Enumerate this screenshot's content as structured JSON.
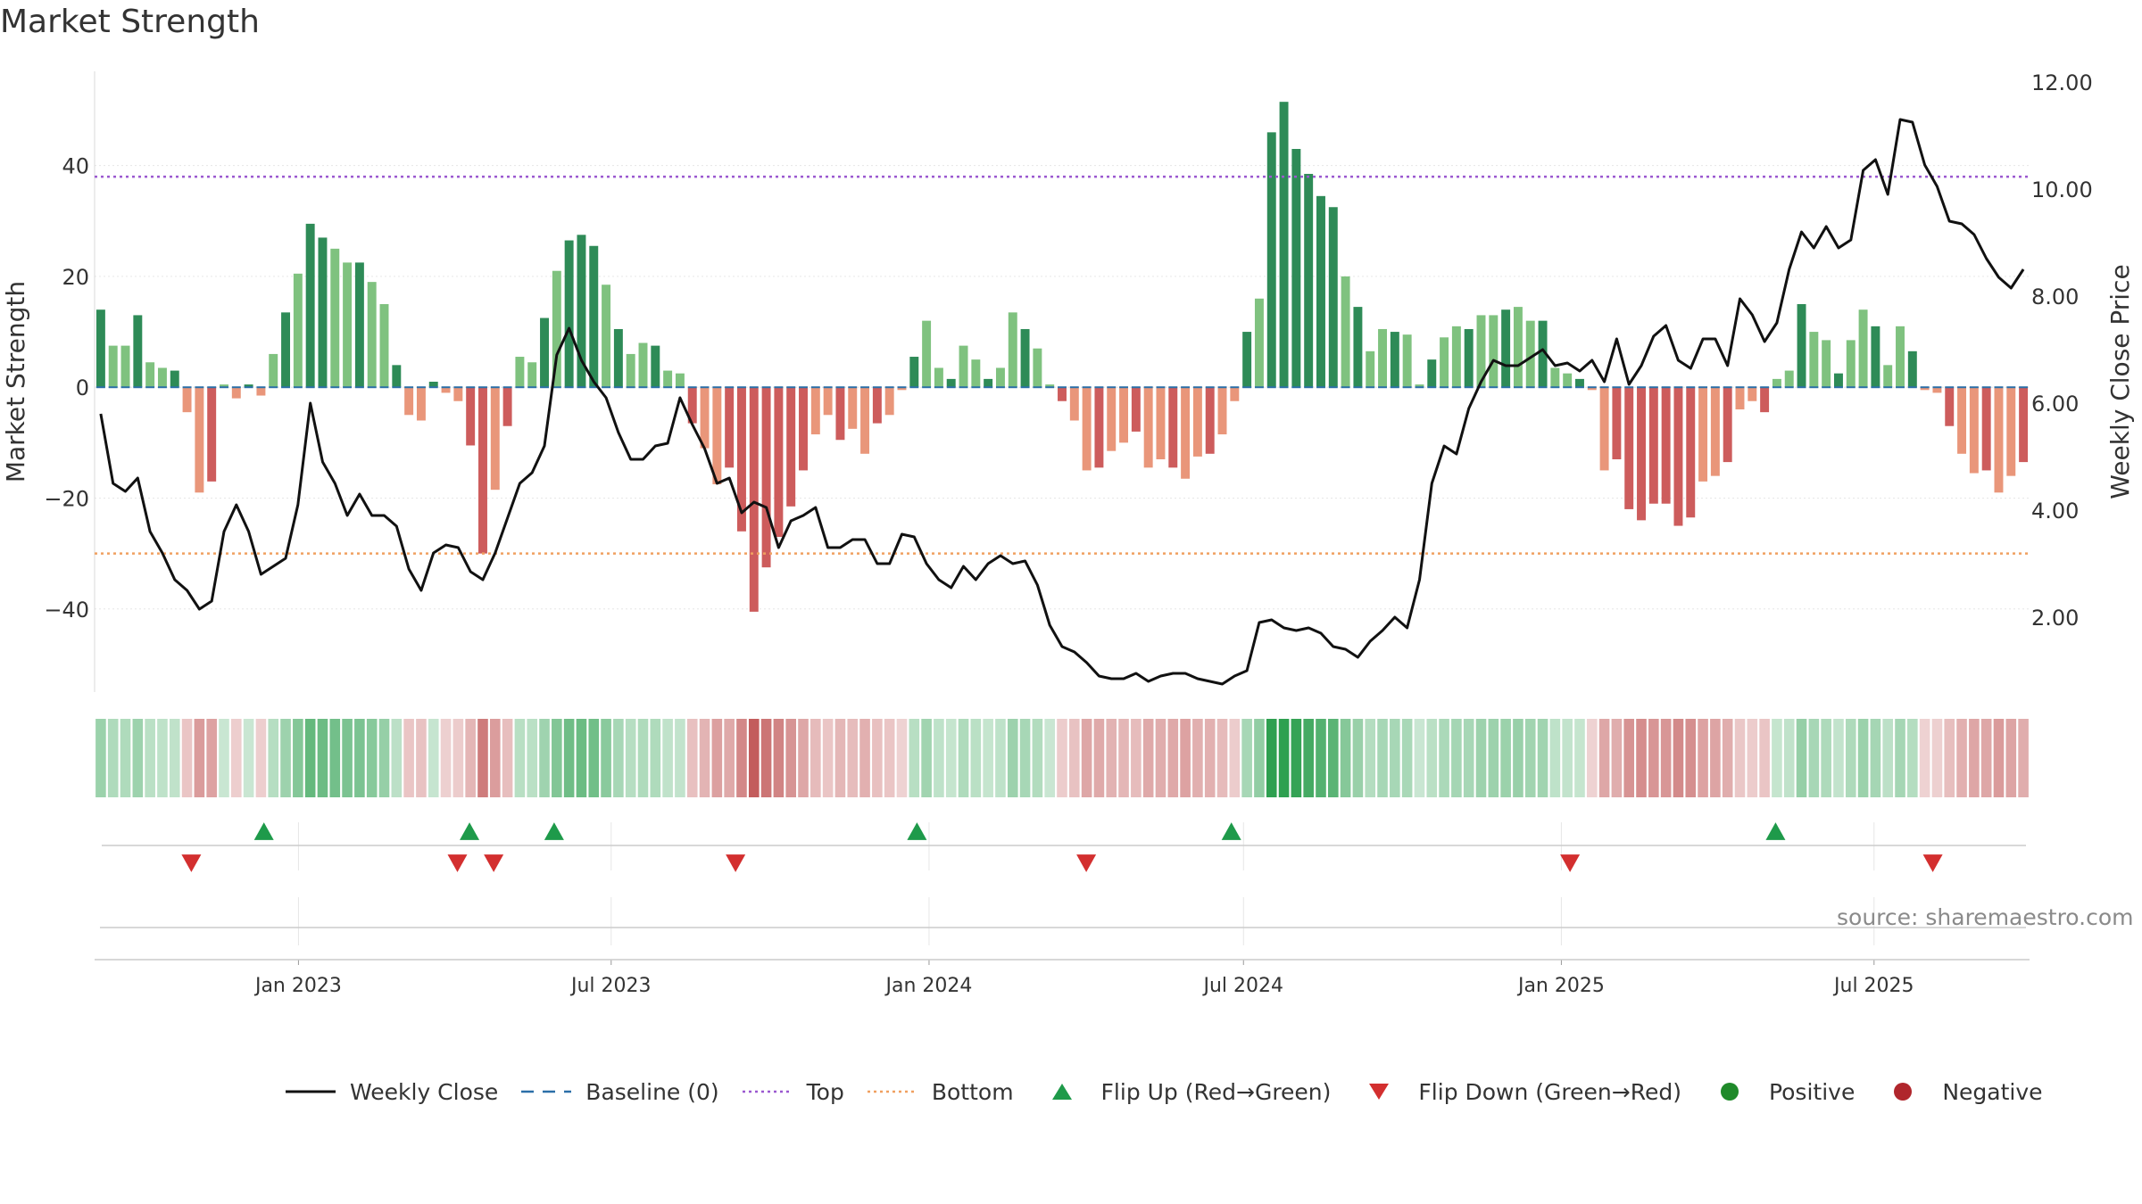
{
  "title": "Market Strength",
  "source": "source: sharemaestro.com",
  "colors": {
    "line": "#111111",
    "baseline": "#2b6fa8",
    "top": "#9b59d0",
    "bottom": "#f0a060",
    "up": "#1e9a4a",
    "down": "#d32f2f",
    "positive": "#1f8a2a",
    "negative": "#b0262c",
    "green_strong": "#2e8b57",
    "green_light": "#7fc27f",
    "red_strong": "#cd5c5c",
    "red_light": "#e9967a"
  },
  "legend": [
    {
      "label": "Weekly Close",
      "symbol": "line"
    },
    {
      "label": "Baseline (0)",
      "symbol": "dash"
    },
    {
      "label": "Top",
      "symbol": "dot-purple"
    },
    {
      "label": "Bottom",
      "symbol": "dot-orange"
    },
    {
      "label": "Flip Up (Red→Green)",
      "symbol": "tri-up"
    },
    {
      "label": "Flip Down (Green→Red)",
      "symbol": "tri-down"
    },
    {
      "label": "Positive",
      "symbol": "circle-green"
    },
    {
      "label": "Negative",
      "symbol": "circle-red"
    }
  ],
  "chart_data": {
    "type": "bar",
    "title": "Market Strength",
    "ylabel": "Market Strength",
    "y2label": "Weekly Close Price",
    "ylim": [
      -55,
      57
    ],
    "y2lim": [
      0.6,
      12.2
    ],
    "yticks": [
      -40,
      -20,
      0,
      20,
      40
    ],
    "yticklabels": [
      "−40",
      "−20",
      "0",
      "20",
      "40"
    ],
    "y2ticks": [
      2,
      4,
      6,
      8,
      10,
      12
    ],
    "y2ticklabels": [
      "2.00",
      "4.00",
      "6.00",
      "8.00",
      "10.00",
      "12.00"
    ],
    "x_start": "2022-09-05",
    "x_end": "2025-09-29",
    "xticks": [
      "2023-01-01",
      "2023-07-01",
      "2024-01-01",
      "2024-07-01",
      "2025-01-01",
      "2025-07-01"
    ],
    "xticklabels": [
      "Jan 2023",
      "Jul 2023",
      "Jan 2024",
      "Jul 2024",
      "Jan 2025",
      "Jul 2025"
    ],
    "top_level": 38,
    "bottom_level": -30,
    "baseline": 0,
    "grid": true,
    "legend_position": "bottom",
    "series": [
      {
        "name": "Weekly Close",
        "kind": "line",
        "axis": "right",
        "values": [
          5.8,
          4.5,
          4.35,
          4.6,
          3.6,
          3.2,
          2.7,
          2.5,
          2.15,
          2.3,
          3.6,
          4.1,
          3.6,
          2.8,
          2.95,
          3.1,
          4.1,
          6.0,
          4.9,
          4.5,
          3.9,
          4.3,
          3.9,
          3.9,
          3.7,
          2.9,
          2.5,
          3.2,
          3.35,
          3.3,
          2.85,
          2.7,
          3.2,
          3.85,
          4.5,
          4.7,
          5.2,
          6.9,
          7.4,
          6.8,
          6.4,
          6.1,
          5.45,
          4.95,
          4.95,
          5.2,
          5.25,
          6.1,
          5.6,
          5.15,
          4.5,
          4.6,
          3.95,
          4.15,
          4.05,
          3.3,
          3.8,
          3.9,
          4.05,
          3.3,
          3.3,
          3.45,
          3.45,
          3.0,
          3.0,
          3.55,
          3.5,
          3.0,
          2.7,
          2.55,
          2.95,
          2.7,
          3.0,
          3.15,
          3.0,
          3.05,
          2.6,
          1.85,
          1.45,
          1.35,
          1.15,
          0.9,
          0.85,
          0.85,
          0.95,
          0.8,
          0.9,
          0.95,
          0.95,
          0.85,
          0.8,
          0.75,
          0.9,
          1.0,
          1.9,
          1.95,
          1.8,
          1.75,
          1.8,
          1.7,
          1.45,
          1.4,
          1.25,
          1.55,
          1.75,
          2.0,
          1.8,
          2.7,
          4.5,
          5.2,
          5.05,
          5.9,
          6.4,
          6.8,
          6.7,
          6.7,
          6.85,
          7.0,
          6.7,
          6.75,
          6.6,
          6.8,
          6.4,
          7.2,
          6.35,
          6.7,
          7.25,
          7.45,
          6.8,
          6.65,
          7.2,
          7.2,
          6.7,
          7.95,
          7.65,
          7.15,
          7.5,
          8.5,
          9.2,
          8.9,
          9.3,
          8.9,
          9.05,
          10.35,
          10.55,
          9.9,
          11.3,
          11.25,
          10.45,
          10.05,
          9.4,
          9.35,
          9.15,
          8.7,
          8.35,
          8.15,
          8.5
        ]
      },
      {
        "name": "Market Strength",
        "kind": "bar",
        "axis": "left",
        "values": [
          14,
          7.5,
          7.5,
          13,
          4.5,
          3.5,
          3,
          -4.5,
          -19,
          -17,
          0.5,
          -2,
          0.5,
          -1.5,
          6,
          13.5,
          20.5,
          29.5,
          27,
          25,
          22.5,
          22.5,
          19,
          15,
          4,
          -5,
          -6,
          1,
          -1,
          -2.5,
          -10.5,
          -30,
          -18.5,
          -7,
          5.5,
          4.5,
          12.5,
          21,
          26.5,
          27.5,
          25.5,
          18.5,
          10.5,
          6,
          8,
          7.5,
          3,
          2.5,
          -6.5,
          -11,
          -17.5,
          -14.5,
          -26,
          -40.5,
          -32.5,
          -27,
          -21.5,
          -15,
          -8.5,
          -5,
          -9.5,
          -7.5,
          -12,
          -6.5,
          -5,
          -0.5,
          5.5,
          12,
          3.5,
          1.5,
          7.5,
          5,
          1.5,
          3.5,
          13.5,
          10.5,
          7,
          0.5,
          -2.5,
          -6,
          -15,
          -14.5,
          -11.5,
          -10,
          -8,
          -14.5,
          -13,
          -14.5,
          -16.5,
          -12.5,
          -12,
          -8.5,
          -2.5,
          10,
          16,
          46,
          51.5,
          43,
          38.5,
          34.5,
          32.5,
          20,
          14.5,
          6.5,
          10.5,
          10,
          9.5,
          0.5,
          5,
          9,
          11,
          10.5,
          13,
          13,
          14,
          14.5,
          12,
          12,
          3.5,
          2.5,
          1.5,
          -0.5,
          -15,
          -13,
          -22,
          -24,
          -21,
          -21,
          -25,
          -23.5,
          -17,
          -16,
          -13.5,
          -4,
          -2.5,
          -4.5,
          1.5,
          3,
          15,
          10,
          8.5,
          2.5,
          8.5,
          14,
          11,
          4,
          11,
          6.5,
          -0.5,
          -1,
          -7,
          -12,
          -15.5,
          -15,
          -19,
          -16,
          -13.5
        ]
      },
      {
        "name": "Flip Up (Red→Green)",
        "kind": "marker",
        "axis": "left",
        "dates": [
          "2022-12-12",
          "2023-04-10",
          "2023-05-29",
          "2023-12-25",
          "2024-06-24",
          "2025-05-05"
        ]
      },
      {
        "name": "Flip Down (Green→Red)",
        "kind": "marker",
        "axis": "left",
        "dates": [
          "2022-10-31",
          "2023-04-03",
          "2023-04-24",
          "2023-09-11",
          "2024-04-01",
          "2025-01-06",
          "2025-08-04"
        ]
      }
    ]
  }
}
